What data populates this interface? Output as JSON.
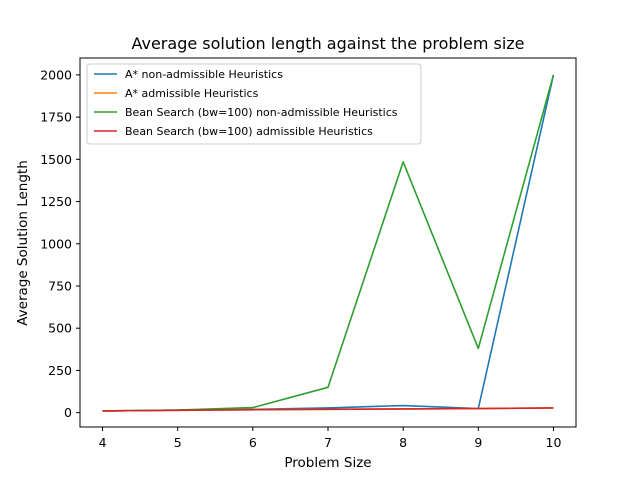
{
  "chart_data": {
    "type": "line",
    "title": "Average solution length against the problem size",
    "xlabel": "Problem Size",
    "ylabel": "Average Solution Length",
    "x": [
      4,
      5,
      6,
      7,
      8,
      9,
      10
    ],
    "xlim": [
      3.7,
      10.3
    ],
    "ylim": [
      -85,
      2100
    ],
    "xticks": [
      4,
      5,
      6,
      7,
      8,
      9,
      10
    ],
    "yticks": [
      0,
      250,
      500,
      750,
      1000,
      1250,
      1500,
      1750,
      2000
    ],
    "grid": false,
    "legend_position": "top-left",
    "series": [
      {
        "name": "A* non-admissible Heuristics",
        "color": "#1f77b4",
        "values": [
          10,
          15,
          20,
          28,
          42,
          24,
          2000
        ]
      },
      {
        "name": "A* admissible Heuristics",
        "color": "#ff7f0e",
        "values": [
          10,
          14,
          18,
          20,
          22,
          24,
          28
        ]
      },
      {
        "name": "Bean Search (bw=100) non-admissible Heuristics",
        "color": "#2ca02c",
        "values": [
          10,
          15,
          30,
          150,
          1485,
          380,
          2000
        ]
      },
      {
        "name": "Bean Search (bw=100) admissible Heuristics",
        "color": "#d62728",
        "values": [
          10,
          14,
          17,
          20,
          22,
          24,
          28
        ]
      }
    ]
  }
}
